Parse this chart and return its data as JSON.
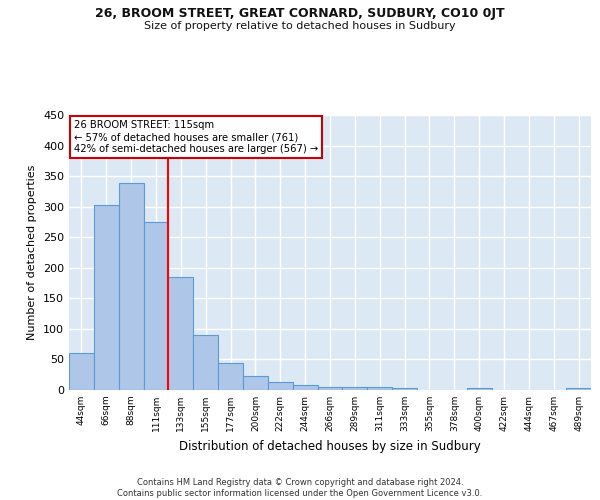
{
  "title": "26, BROOM STREET, GREAT CORNARD, SUDBURY, CO10 0JT",
  "subtitle": "Size of property relative to detached houses in Sudbury",
  "xlabel": "Distribution of detached houses by size in Sudbury",
  "ylabel": "Number of detached properties",
  "categories": [
    "44sqm",
    "66sqm",
    "88sqm",
    "111sqm",
    "133sqm",
    "155sqm",
    "177sqm",
    "200sqm",
    "222sqm",
    "244sqm",
    "266sqm",
    "289sqm",
    "311sqm",
    "333sqm",
    "355sqm",
    "378sqm",
    "400sqm",
    "422sqm",
    "444sqm",
    "467sqm",
    "489sqm"
  ],
  "values": [
    61,
    303,
    338,
    275,
    185,
    90,
    45,
    23,
    13,
    8,
    5,
    5,
    5,
    3,
    0,
    0,
    3,
    0,
    0,
    0,
    3
  ],
  "bar_color": "#aec6e8",
  "bar_edgecolor": "#5b9bd5",
  "annotation_text": "26 BROOM STREET: 115sqm\n← 57% of detached houses are smaller (761)\n42% of semi-detached houses are larger (567) →",
  "annotation_box_color": "#ffffff",
  "annotation_box_edgecolor": "#cc0000",
  "background_color": "#dce9f5",
  "grid_color": "#ffffff",
  "footer": "Contains HM Land Registry data © Crown copyright and database right 2024.\nContains public sector information licensed under the Open Government Licence v3.0.",
  "ylim": [
    0,
    450
  ],
  "yticks": [
    0,
    50,
    100,
    150,
    200,
    250,
    300,
    350,
    400,
    450
  ],
  "vline_pos": 3.5
}
